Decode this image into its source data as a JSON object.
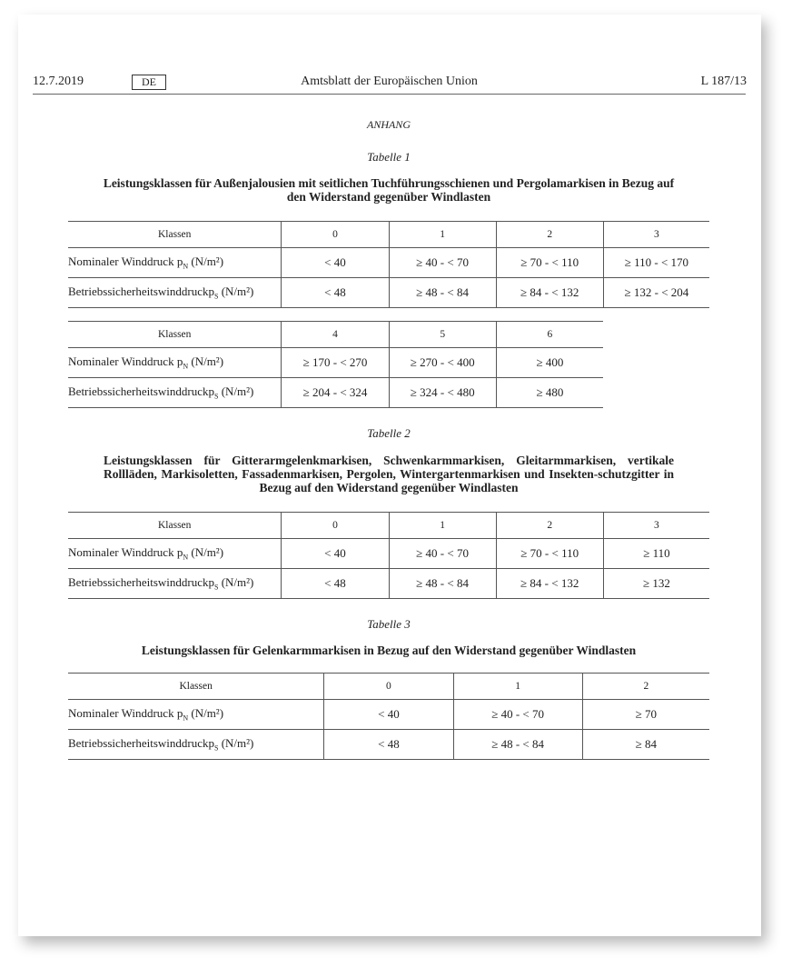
{
  "header": {
    "date": "12.7.2019",
    "lang": "DE",
    "journal": "Amtsblatt der Europäischen Union",
    "page": "L 187/13"
  },
  "annex": "ANHANG",
  "tables": [
    {
      "caption": "Tabelle 1",
      "title": "Leistungsklassen für Außenjalousien mit seitlichen Tuchführungsschienen und Pergolamarkisen in Bezug auf den Widerstand gegenüber Windlasten",
      "parts": [
        {
          "head": [
            "Klassen",
            "0",
            "1",
            "2",
            "3"
          ],
          "rows": [
            {
              "pre": "Nominaler Winddruck p",
              "sub": "N",
              "post": " (N/m²)",
              "cells": [
                "< 40",
                "≥ 40 - < 70",
                "≥ 70 - < 110",
                "≥ 110 - < 170"
              ]
            },
            {
              "pre": "Betriebssicherheitswinddruckp",
              "sub": "S",
              "post": " (N/m²)",
              "cells": [
                "< 48",
                "≥ 48 - < 84",
                "≥ 84 - < 132",
                "≥ 132 - < 204"
              ]
            }
          ]
        },
        {
          "head": [
            "Klassen",
            "4",
            "5",
            "6"
          ],
          "rows": [
            {
              "pre": "Nominaler Winddruck p",
              "sub": "N",
              "post": " (N/m²)",
              "cells": [
                "≥ 170 - < 270",
                "≥ 270 - < 400",
                "≥ 400"
              ]
            },
            {
              "pre": "Betriebssicherheitswinddruckp",
              "sub": "S",
              "post": " (N/m²)",
              "cells": [
                "≥ 204 - < 324",
                "≥ 324 - < 480",
                "≥ 480"
              ]
            }
          ]
        }
      ]
    },
    {
      "caption": "Tabelle 2",
      "title": "Leistungsklassen für Gitterarmgelenkmarkisen, Schwenkarmmarkisen, Gleitarmmarkisen, vertikale Rollläden, Markisoletten, Fassadenmarkisen, Pergolen, Wintergartenmarkisen und Insekten-schutzgitter in Bezug auf den Widerstand gegenüber Windlasten",
      "parts": [
        {
          "head": [
            "Klassen",
            "0",
            "1",
            "2",
            "3"
          ],
          "rows": [
            {
              "pre": "Nominaler Winddruck p",
              "sub": "N",
              "post": " (N/m²)",
              "cells": [
                "< 40",
                "≥ 40 - < 70",
                "≥ 70 - < 110",
                "≥ 110"
              ]
            },
            {
              "pre": "Betriebssicherheitswinddruckp",
              "sub": "S",
              "post": " (N/m²)",
              "cells": [
                "< 48",
                "≥ 48 - < 84",
                "≥ 84 - < 132",
                "≥ 132"
              ]
            }
          ]
        }
      ]
    },
    {
      "caption": "Tabelle 3",
      "title": "Leistungsklassen für Gelenkarmmarkisen in Bezug auf den Widerstand gegenüber Windlasten",
      "parts": [
        {
          "head": [
            "Klassen",
            "0",
            "1",
            "2"
          ],
          "rows": [
            {
              "pre": "Nominaler Winddruck p",
              "sub": "N",
              "post": " (N/m²)",
              "cells": [
                "< 40",
                "≥ 40 - < 70",
                "≥ 70"
              ]
            },
            {
              "pre": "Betriebssicherheitswinddruckp",
              "sub": "S",
              "post": " (N/m²)",
              "cells": [
                "< 48",
                "≥ 48 - < 84",
                "≥ 84"
              ]
            }
          ]
        }
      ]
    }
  ]
}
